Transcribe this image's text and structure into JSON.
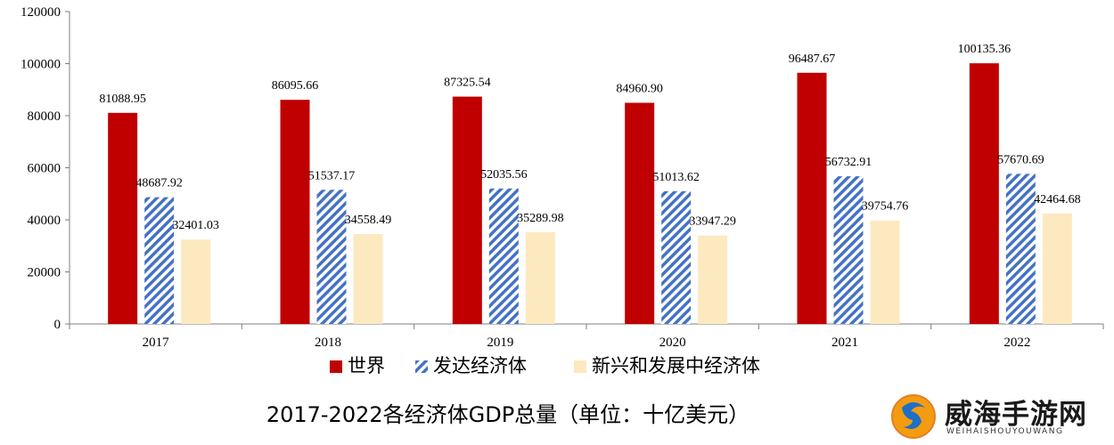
{
  "chart_data": {
    "type": "bar",
    "categories": [
      "2017",
      "2018",
      "2019",
      "2020",
      "2021",
      "2022"
    ],
    "series": [
      {
        "name": "世界",
        "values": [
          81088.95,
          86095.66,
          87325.54,
          84960.9,
          96487.67,
          100135.36
        ],
        "labels": [
          "81088.95",
          "86095.66",
          "87325.54",
          "84960.90",
          "96487.67",
          "100135.36"
        ],
        "color": "#c00000",
        "pattern": "solid"
      },
      {
        "name": "发达经济体",
        "values": [
          48687.92,
          51537.17,
          52035.56,
          51013.62,
          56732.91,
          57670.69
        ],
        "labels": [
          "48687.92",
          "51537.17",
          "52035.56",
          "51013.62",
          "56732.91",
          "57670.69"
        ],
        "color": "#4472c4",
        "pattern": "diagonal-stripes"
      },
      {
        "name": "新兴和发展中经济体",
        "values": [
          32401.03,
          34558.49,
          35289.98,
          33947.29,
          39754.76,
          42464.68
        ],
        "labels": [
          "32401.03",
          "34558.49",
          "35289.98",
          "33947.29",
          "39754.76",
          "42464.68"
        ],
        "color": "#fde9c0",
        "pattern": "solid"
      }
    ],
    "ylim": [
      0,
      120000
    ],
    "yticks": [
      "0",
      "20000",
      "40000",
      "60000",
      "80000",
      "100000",
      "120000"
    ],
    "ytick_values": [
      0,
      20000,
      40000,
      60000,
      80000,
      100000,
      120000
    ],
    "legend_position": "bottom",
    "grid": false,
    "title": "2017-2022各经济体GDP总量（单位：十亿美元）"
  },
  "watermark": {
    "title": "威海手游网",
    "subtitle": "WEIHAISHOUYOUWANG"
  }
}
